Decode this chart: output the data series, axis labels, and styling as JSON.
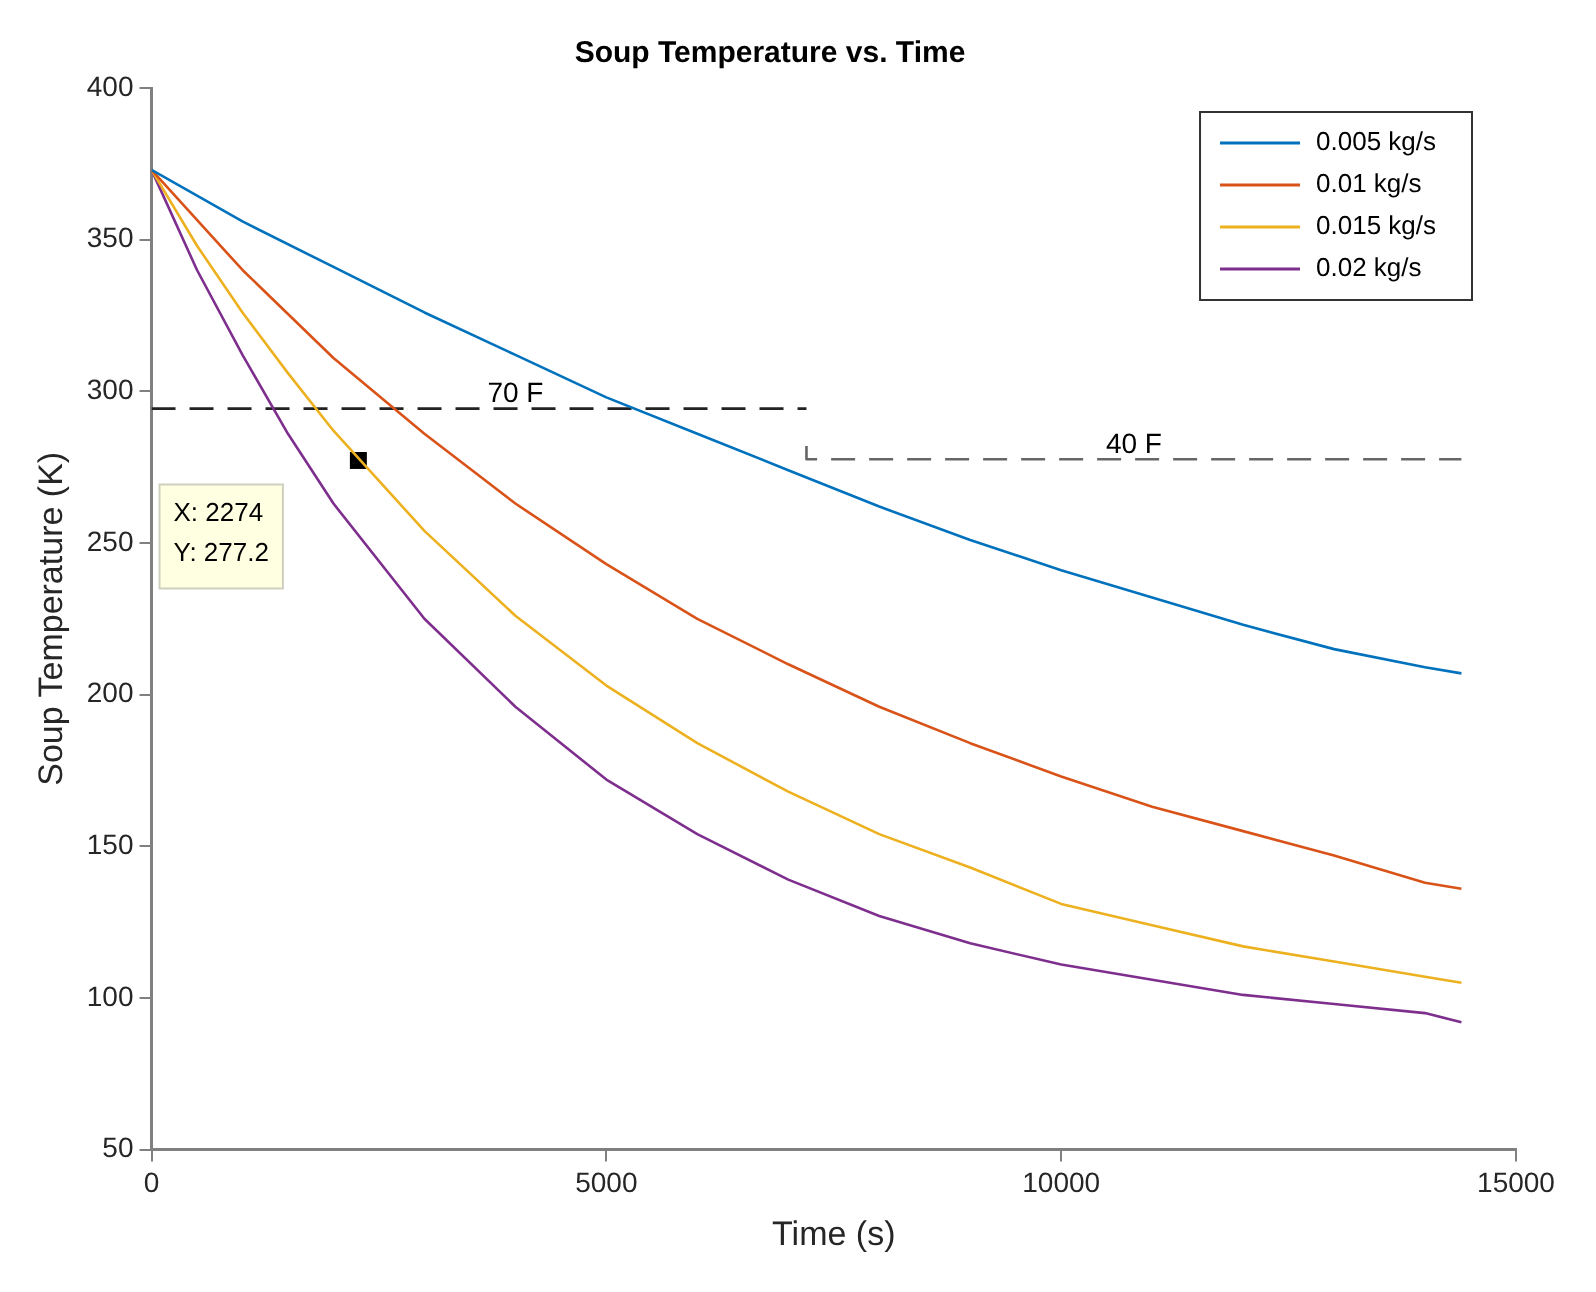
{
  "chart_data": {
    "type": "line",
    "title": "Soup Temperature vs. Time",
    "xlabel": "Time (s)",
    "ylabel": "Soup Temperature (K)",
    "xlim": [
      0,
      15000
    ],
    "xticks": [
      0,
      5000,
      10000,
      15000
    ],
    "ylim": [
      50,
      400
    ],
    "yticks": [
      50,
      100,
      150,
      200,
      250,
      300,
      350,
      400
    ],
    "grid": false,
    "legend": "top right",
    "marker": "none",
    "series": [
      {
        "name": "0.005 kg/s",
        "color": "#0072bd",
        "x": [
          0,
          1000,
          2000,
          3000,
          4000,
          5000,
          6000,
          7000,
          8000,
          9000,
          10000,
          11000,
          12000,
          13000,
          14000,
          14400
        ],
        "values": [
          373,
          356,
          341,
          326,
          312,
          298,
          286,
          274,
          262,
          251,
          241,
          232,
          223,
          215,
          209,
          207
        ]
      },
      {
        "name": "0.01 kg/s",
        "color": "#d95319",
        "x": [
          0,
          1000,
          2000,
          3000,
          4000,
          5000,
          6000,
          7000,
          8000,
          9000,
          10000,
          11000,
          12000,
          13000,
          14000,
          14400
        ],
        "values": [
          373,
          340,
          311,
          286,
          263,
          243,
          225,
          210,
          196,
          184,
          173,
          163,
          155,
          147,
          138,
          136
        ]
      },
      {
        "name": "0.015 kg/s",
        "color": "#edb120",
        "x": [
          0,
          500,
          1000,
          1500,
          2000,
          3000,
          4000,
          5000,
          6000,
          7000,
          8000,
          9000,
          10000,
          11000,
          12000,
          13000,
          14000,
          14400
        ],
        "values": [
          373,
          348,
          326,
          306,
          287,
          254,
          226,
          203,
          184,
          168,
          154,
          143,
          131,
          124,
          117,
          112,
          107,
          105
        ]
      },
      {
        "name": "0.02 kg/s",
        "color": "#7e2f8e",
        "x": [
          0,
          500,
          1000,
          1500,
          2000,
          3000,
          4000,
          5000,
          6000,
          7000,
          8000,
          9000,
          10000,
          11000,
          12000,
          13000,
          14000,
          14400
        ],
        "values": [
          373,
          340,
          312,
          286,
          263,
          225,
          196,
          172,
          154,
          139,
          127,
          118,
          111,
          106,
          101,
          98,
          95,
          92
        ]
      },
      {
        "color": "#222222",
        "line_style": "dashed",
        "x": [
          0,
          7200
        ],
        "values": [
          294.3,
          294.3
        ]
      },
      {
        "color": "#666666",
        "line_style": "dashed",
        "x": [
          7200,
          7200,
          14400
        ],
        "values": [
          282,
          277.6,
          277.6
        ]
      },
      {
        "type": "scatter",
        "color": "#000000",
        "marker": "square",
        "x": [
          2274
        ],
        "values": [
          277.2
        ]
      }
    ],
    "annotations": [
      {
        "text": "70 F",
        "x": 4000,
        "y": 294.3
      },
      {
        "text": "40 F",
        "x": 10800,
        "y": 277.6
      },
      "X: 2274\nY: 277.2"
    ]
  }
}
